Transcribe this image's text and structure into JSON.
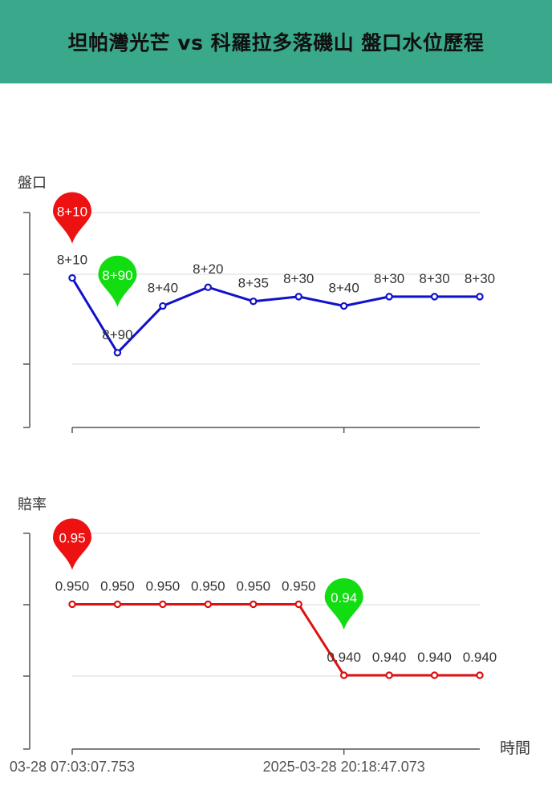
{
  "header": {
    "title": "坦帕灣光芒 vs 科羅拉多落磯山 盤口水位歷程"
  },
  "colors": {
    "header_bg": "#3aa88a",
    "handicap_line": "#1111cc",
    "odds_line": "#dd1111",
    "max_pin": "#ee1111",
    "min_pin": "#11dd11",
    "grid": "#e6e6e6",
    "axis": "#555555"
  },
  "chart_data": [
    {
      "type": "line",
      "ylabel": "盤口",
      "x": [
        "03-28 07:03:07.753",
        "",
        "",
        "",
        "",
        "",
        "2025-03-28 20:18:47.073",
        "",
        "",
        ""
      ],
      "point_labels": [
        "8+10",
        "8+90",
        "8+40",
        "8+20",
        "8+35",
        "8+30",
        "8+40",
        "8+30",
        "8+30",
        "8+30"
      ],
      "values": [
        8.1,
        8.9,
        8.4,
        8.2,
        8.35,
        8.3,
        8.4,
        8.3,
        8.3,
        8.3
      ],
      "max_pin": {
        "index": 0,
        "label": "8+10"
      },
      "min_pin": {
        "index": 1,
        "label": "8+90"
      },
      "inverted_y": true,
      "ylim": [
        7.4,
        9.7
      ],
      "grid": true
    },
    {
      "type": "line",
      "ylabel": "賠率",
      "xlabel": "時間",
      "x": [
        "03-28 07:03:07.753",
        "",
        "",
        "",
        "",
        "",
        "2025-03-28 20:18:47.073",
        "",
        "",
        ""
      ],
      "point_labels": [
        "0.950",
        "0.950",
        "0.950",
        "0.950",
        "0.950",
        "0.950",
        "0.940",
        "0.940",
        "0.940",
        "0.940"
      ],
      "values": [
        0.95,
        0.95,
        0.95,
        0.95,
        0.95,
        0.95,
        0.94,
        0.94,
        0.94,
        0.94
      ],
      "max_pin": {
        "index": 0,
        "label": "0.95"
      },
      "min_pin": {
        "index": 6,
        "label": "0.94"
      },
      "x_ticks": [
        "03-28 07:03:07.753",
        "2025-03-28 20:18:47.073"
      ],
      "ylim": [
        0.9296,
        0.96
      ],
      "grid": true
    }
  ]
}
